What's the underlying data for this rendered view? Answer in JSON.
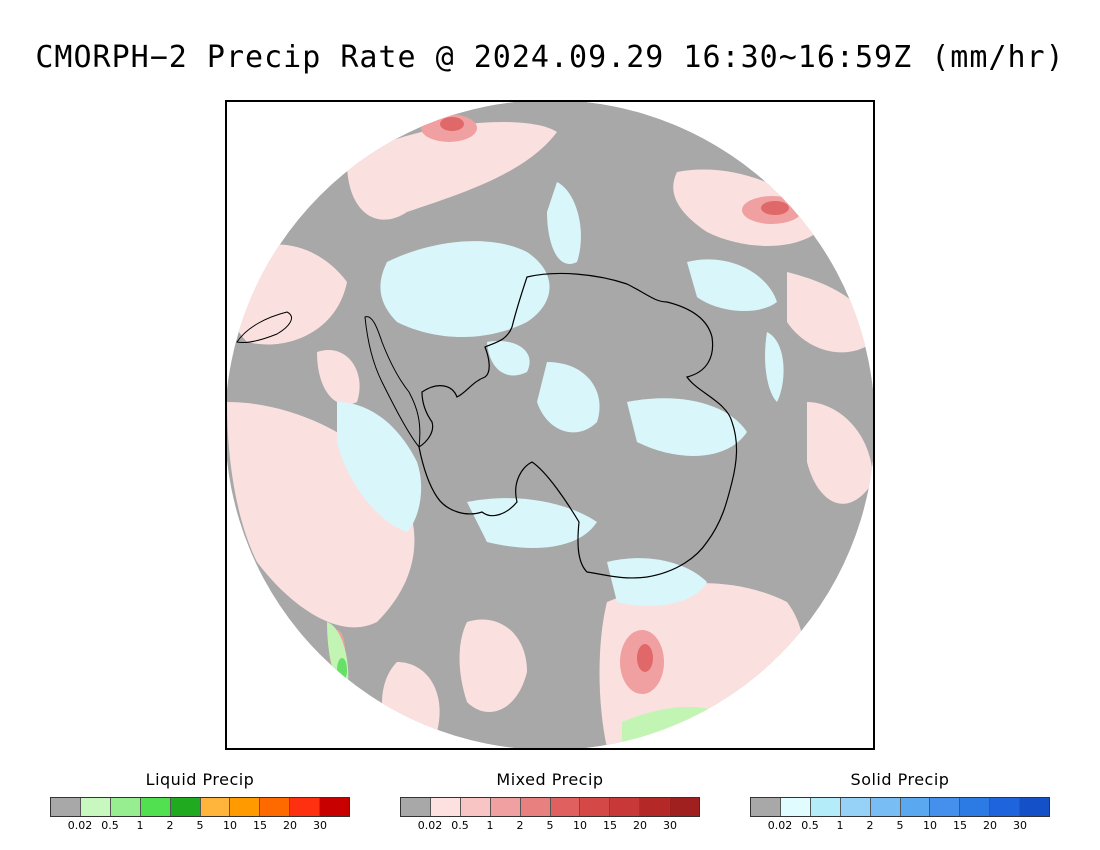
{
  "title": "CMORPH−2 Precip Rate @ 2024.09.29 16:30~16:59Z (mm/hr)",
  "map": {
    "projection": "south-polar-stereographic",
    "colors": {
      "no_precip": "#a8a8a8",
      "solid_light": "#d9f7fa",
      "mixed_light": "#fbe0e0",
      "mixed_mid": "#f0a0a0",
      "mixed_dark": "#e06868",
      "liquid_light": "#c2f5b4",
      "liquid_mid": "#66e066",
      "coastline": "#000000"
    }
  },
  "legends": [
    {
      "title": "Liquid Precip",
      "colors": [
        "#a8a8a8",
        "#c8f8c0",
        "#96ee90",
        "#50e050",
        "#20aa20",
        "#ffb43c",
        "#ff9a00",
        "#ff6a00",
        "#ff3010",
        "#c80000"
      ],
      "ticks": [
        "0.02",
        "0.5",
        "1",
        "2",
        "5",
        "10",
        "15",
        "20",
        "30"
      ]
    },
    {
      "title": "Mixed Precip",
      "colors": [
        "#a8a8a8",
        "#fde0e0",
        "#f8c4c4",
        "#f0a0a0",
        "#e88080",
        "#e06060",
        "#d44848",
        "#c83838",
        "#b42828",
        "#a02020"
      ],
      "ticks": [
        "0.02",
        "0.5",
        "1",
        "2",
        "5",
        "10",
        "15",
        "20",
        "30"
      ]
    },
    {
      "title": "Solid Precip",
      "colors": [
        "#a8a8a8",
        "#e0fcff",
        "#b4ecfa",
        "#96d2f8",
        "#78bef4",
        "#5aa8f0",
        "#4490ec",
        "#2c7ae4",
        "#1e64dc",
        "#1450c8"
      ],
      "ticks": [
        "0.02",
        "0.5",
        "1",
        "2",
        "5",
        "10",
        "15",
        "20",
        "30"
      ]
    }
  ]
}
